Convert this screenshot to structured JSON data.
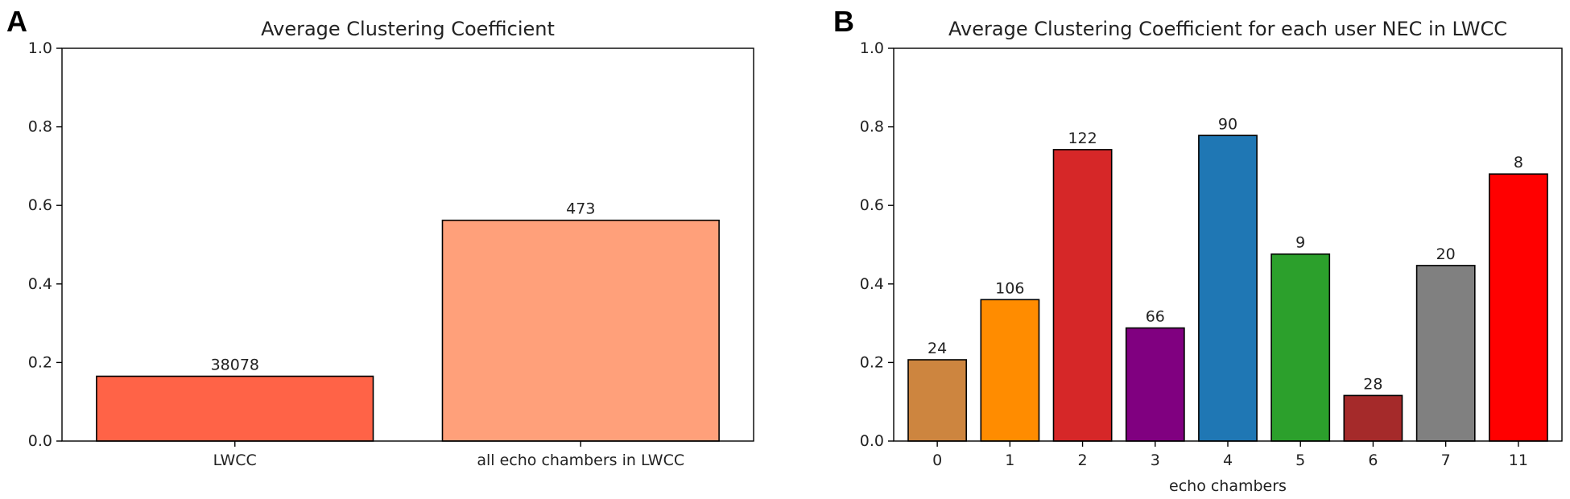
{
  "panels": {
    "a_letter": "A",
    "b_letter": "B"
  },
  "chart_data": [
    {
      "type": "bar",
      "title": "Average Clustering Coefficient",
      "xlabel": "",
      "ylabel": "",
      "ylim": [
        0,
        1.0
      ],
      "yticks": [
        0.0,
        0.2,
        0.4,
        0.6,
        0.8,
        1.0
      ],
      "grid": false,
      "categories": [
        "LWCC",
        "all echo chambers in LWCC"
      ],
      "values": [
        0.165,
        0.562
      ],
      "bar_labels": [
        "38078",
        "473"
      ],
      "colors": [
        "#ff6347",
        "#ffa07a"
      ]
    },
    {
      "type": "bar",
      "title": "Average Clustering Coefficient for each user NEC in LWCC",
      "xlabel": "echo chambers",
      "ylabel": "",
      "ylim": [
        0,
        1.0
      ],
      "yticks": [
        0.0,
        0.2,
        0.4,
        0.6,
        0.8,
        1.0
      ],
      "grid": false,
      "categories": [
        "0",
        "1",
        "2",
        "3",
        "4",
        "5",
        "6",
        "7",
        "11"
      ],
      "values": [
        0.207,
        0.36,
        0.742,
        0.288,
        0.778,
        0.476,
        0.116,
        0.447,
        0.68
      ],
      "bar_labels": [
        "24",
        "106",
        "122",
        "66",
        "90",
        "9",
        "28",
        "20",
        "8"
      ],
      "colors": [
        "#cd853f",
        "#ff8c00",
        "#d62728",
        "#800080",
        "#1f77b4",
        "#2ca02c",
        "#a52a2a",
        "#808080",
        "#ff0000"
      ]
    }
  ]
}
